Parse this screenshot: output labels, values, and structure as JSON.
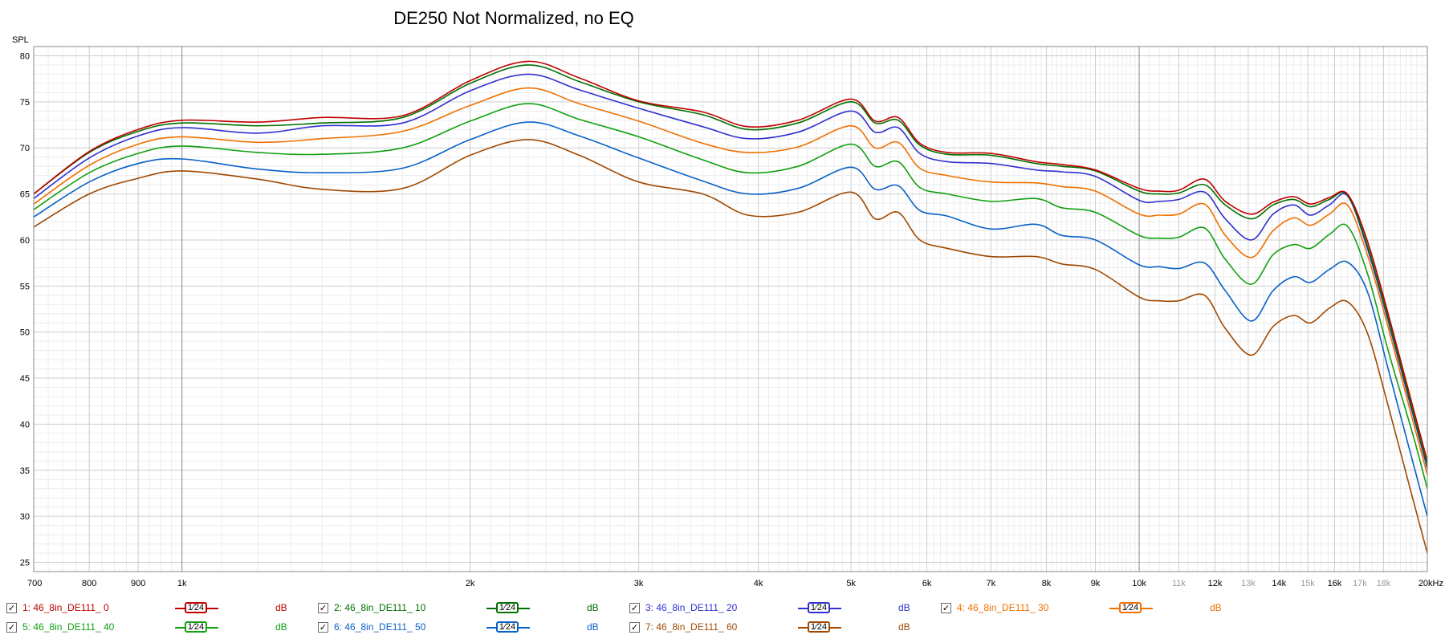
{
  "chart_data": {
    "type": "line",
    "title": "DE250 Not Normalized, no EQ",
    "ylabel": "SPL",
    "xlabel": "",
    "x_scale": "log",
    "xlim": [
      700,
      20000
    ],
    "ylim": [
      24,
      81
    ],
    "grid": true,
    "y_ticks": [
      25,
      30,
      35,
      40,
      45,
      50,
      55,
      60,
      65,
      70,
      75,
      80
    ],
    "x_tick_labels": [
      {
        "v": 700,
        "t": "700",
        "minor": false
      },
      {
        "v": 800,
        "t": "800",
        "minor": false
      },
      {
        "v": 900,
        "t": "900",
        "minor": false
      },
      {
        "v": 1000,
        "t": "1k",
        "minor": false
      },
      {
        "v": 2000,
        "t": "2k",
        "minor": false
      },
      {
        "v": 3000,
        "t": "3k",
        "minor": false
      },
      {
        "v": 4000,
        "t": "4k",
        "minor": false
      },
      {
        "v": 5000,
        "t": "5k",
        "minor": false
      },
      {
        "v": 6000,
        "t": "6k",
        "minor": false
      },
      {
        "v": 7000,
        "t": "7k",
        "minor": false
      },
      {
        "v": 8000,
        "t": "8k",
        "minor": false
      },
      {
        "v": 9000,
        "t": "9k",
        "minor": false
      },
      {
        "v": 10000,
        "t": "10k",
        "minor": false
      },
      {
        "v": 11000,
        "t": "11k",
        "minor": true
      },
      {
        "v": 12000,
        "t": "12k",
        "minor": false
      },
      {
        "v": 13000,
        "t": "13k",
        "minor": true
      },
      {
        "v": 14000,
        "t": "14k",
        "minor": false
      },
      {
        "v": 15000,
        "t": "15k",
        "minor": true
      },
      {
        "v": 16000,
        "t": "16k",
        "minor": false
      },
      {
        "v": 17000,
        "t": "17k",
        "minor": true
      },
      {
        "v": 18000,
        "t": "18k",
        "minor": true
      },
      {
        "v": 20000,
        "t": "20kHz",
        "minor": false
      }
    ],
    "x": [
      700,
      800,
      900,
      1000,
      1200,
      1400,
      1700,
      2000,
      2300,
      2600,
      3000,
      3500,
      3900,
      4400,
      5000,
      5300,
      5600,
      5900,
      6300,
      7000,
      7800,
      8300,
      9000,
      10000,
      10500,
      11000,
      11700,
      12300,
      13100,
      13800,
      14500,
      15100,
      15800,
      16500,
      17300,
      18200,
      19300,
      20000
    ],
    "series": [
      {
        "name": "1: 46_8in_DE111_ 0",
        "color": "#c00000",
        "values": [
          65.0,
          69.6,
          72.0,
          73.0,
          72.8,
          73.3,
          73.5,
          77.3,
          79.4,
          77.6,
          75.1,
          73.9,
          72.3,
          73.0,
          75.3,
          72.9,
          73.3,
          70.5,
          69.5,
          69.4,
          68.5,
          68.2,
          67.6,
          65.6,
          65.3,
          65.4,
          66.6,
          64.2,
          62.8,
          64.1,
          64.7,
          63.9,
          64.6,
          65.0,
          60.0,
          52.0,
          42.0,
          36.0
        ]
      },
      {
        "name": "2: 46_8in_DE111_ 10",
        "color": "#007000",
        "values": [
          65.0,
          69.5,
          71.8,
          72.7,
          72.4,
          72.7,
          73.3,
          77.0,
          79.0,
          77.2,
          75.0,
          73.6,
          72.0,
          72.7,
          75.0,
          72.7,
          73.0,
          70.3,
          69.3,
          69.2,
          68.3,
          68.0,
          67.5,
          65.3,
          65.0,
          65.1,
          66.0,
          63.8,
          62.3,
          63.8,
          64.4,
          63.6,
          64.4,
          64.9,
          59.5,
          51.5,
          41.5,
          35.5
        ]
      },
      {
        "name": "3: 46_8in_DE111_ 20",
        "color": "#3030d0",
        "values": [
          64.5,
          68.9,
          71.3,
          72.2,
          71.6,
          72.4,
          72.7,
          76.2,
          78.0,
          76.3,
          74.3,
          72.3,
          71.0,
          71.7,
          74.0,
          71.7,
          72.2,
          69.4,
          68.5,
          68.3,
          67.6,
          67.4,
          66.9,
          64.3,
          64.2,
          64.4,
          65.2,
          62.3,
          60.0,
          62.8,
          63.8,
          62.7,
          63.8,
          64.8,
          59.2,
          51.2,
          41.2,
          35.2
        ]
      },
      {
        "name": "4: 46_8in_DE111_ 30",
        "color": "#f07000",
        "values": [
          63.9,
          68.1,
          70.4,
          71.2,
          70.6,
          71.0,
          71.8,
          74.6,
          76.5,
          74.8,
          72.9,
          70.5,
          69.5,
          70.1,
          72.4,
          70.0,
          70.6,
          67.8,
          67.0,
          66.3,
          66.2,
          65.8,
          65.3,
          62.8,
          62.7,
          62.8,
          63.9,
          60.5,
          58.1,
          61.0,
          62.4,
          61.6,
          62.8,
          63.8,
          58.5,
          50.5,
          40.5,
          34.5
        ]
      },
      {
        "name": "5: 46_8in_DE111_ 40",
        "color": "#10a010",
        "values": [
          63.3,
          67.3,
          69.4,
          70.2,
          69.5,
          69.3,
          70.0,
          72.9,
          74.8,
          73.1,
          71.2,
          68.7,
          67.3,
          68.0,
          70.4,
          68.0,
          68.5,
          65.7,
          65.0,
          64.2,
          64.5,
          63.5,
          63.0,
          60.5,
          60.2,
          60.3,
          61.3,
          57.9,
          55.2,
          58.4,
          59.5,
          59.1,
          60.6,
          61.5,
          56.5,
          48.0,
          39.0,
          33.0
        ]
      },
      {
        "name": "6: 46_8in_DE111_ 50",
        "color": "#0860c8",
        "values": [
          62.5,
          66.3,
          68.3,
          68.8,
          67.7,
          67.3,
          67.8,
          70.9,
          72.8,
          71.3,
          68.9,
          66.4,
          65.0,
          65.6,
          67.9,
          65.5,
          65.9,
          63.2,
          62.6,
          61.2,
          61.7,
          60.5,
          60.0,
          57.3,
          57.1,
          56.9,
          57.5,
          54.5,
          51.2,
          54.5,
          56.0,
          55.4,
          56.8,
          57.6,
          54.5,
          46.0,
          36.0,
          30.0
        ]
      },
      {
        "name": "7: 46_8in_DE111_ 60",
        "color": "#a04800",
        "values": [
          61.4,
          65.0,
          66.7,
          67.5,
          66.6,
          65.5,
          65.6,
          69.2,
          70.9,
          69.2,
          66.3,
          65.0,
          62.7,
          63.0,
          65.2,
          62.3,
          63.0,
          60.0,
          59.1,
          58.2,
          58.2,
          57.4,
          56.8,
          53.8,
          53.4,
          53.4,
          54.0,
          50.4,
          47.5,
          50.6,
          51.8,
          51.0,
          52.6,
          53.3,
          50.0,
          42.0,
          32.0,
          26.0
        ]
      }
    ]
  },
  "legend": {
    "smoothing_label": "1⁄24",
    "unit_label": "dB",
    "checkbox_glyph": "✓"
  }
}
